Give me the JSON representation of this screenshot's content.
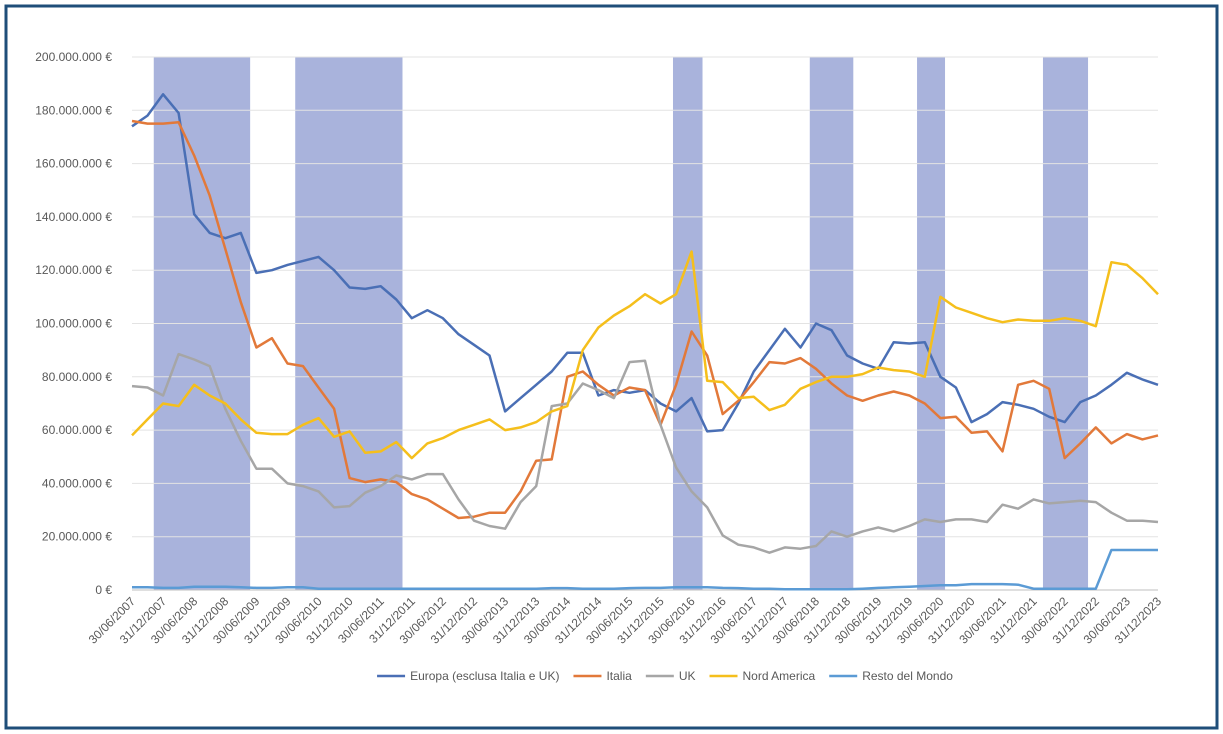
{
  "chart_data": {
    "type": "line",
    "ylim": [
      0,
      200000000
    ],
    "yticks": [
      {
        "value": 0,
        "label": "0 €"
      },
      {
        "value": 20000000,
        "label": "20.000.000 €"
      },
      {
        "value": 40000000,
        "label": "40.000.000 €"
      },
      {
        "value": 60000000,
        "label": "60.000.000 €"
      },
      {
        "value": 80000000,
        "label": "80.000.000 €"
      },
      {
        "value": 100000000,
        "label": "100.000.000 €"
      },
      {
        "value": 120000000,
        "label": "120.000.000 €"
      },
      {
        "value": 140000000,
        "label": "140.000.000 €"
      },
      {
        "value": 160000000,
        "label": "160.000.000 €"
      },
      {
        "value": 180000000,
        "label": "180.000.000 €"
      },
      {
        "value": 200000000,
        "label": "200.000.000 €"
      }
    ],
    "grid": true,
    "legend": "bottom",
    "shaded_periods": [
      [
        1.4,
        7.6
      ],
      [
        10.5,
        17.4
      ],
      [
        34.8,
        36.7
      ],
      [
        43.6,
        46.4
      ],
      [
        50.5,
        52.3
      ],
      [
        58.6,
        61.5
      ]
    ],
    "shaded_color": "#a9b3dc",
    "categories": [
      "30/06/2007",
      null,
      "31/12/2007",
      null,
      "30/06/2008",
      null,
      "31/12/2008",
      null,
      "30/06/2009",
      null,
      "31/12/2009",
      null,
      "30/06/2010",
      null,
      "31/12/2010",
      null,
      "30/06/2011",
      null,
      "31/12/2011",
      null,
      "30/06/2012",
      null,
      "31/12/2012",
      null,
      "30/06/2013",
      null,
      "31/12/2013",
      null,
      "30/06/2014",
      null,
      "31/12/2014",
      null,
      "30/06/2015",
      null,
      "31/12/2015",
      null,
      "30/06/2016",
      null,
      "31/12/2016",
      null,
      "30/06/2017",
      null,
      "31/12/2017",
      null,
      "30/06/2018",
      null,
      "31/12/2018",
      null,
      "30/06/2019",
      null,
      "31/12/2019",
      null,
      "30/06/2020",
      null,
      "31/12/2020",
      null,
      "30/06/2021",
      null,
      "31/12/2021",
      null,
      "30/06/2022",
      null,
      "31/12/2022",
      null,
      "30/06/2023",
      null,
      "31/12/2023"
    ],
    "series": [
      {
        "name": "Europa (esclusa Italia e UK)",
        "color": "#4a6fb5",
        "values": [
          174000000,
          178000000,
          186000000,
          179000000,
          141000000,
          134000000,
          132000000,
          134000000,
          119000000,
          120000000,
          122000000,
          123500000,
          125000000,
          120000000,
          113500000,
          113000000,
          114000000,
          109000000,
          102000000,
          105000000,
          102000000,
          96000000,
          92000000,
          88000000,
          67000000,
          72000000,
          77000000,
          82000000,
          89000000,
          89000000,
          73000000,
          75000000,
          74000000,
          75000000,
          70000000,
          67000000,
          72000000,
          59500000,
          60000000,
          70000000,
          82000000,
          90000000,
          98000000,
          91000000,
          100000000,
          97500000,
          88000000,
          85000000,
          83000000,
          93000000,
          92500000,
          93000000,
          80000000,
          76000000,
          63000000,
          66000000,
          70500000,
          69500000,
          68000000,
          65000000,
          63000000,
          70500000,
          73000000,
          77000000,
          81500000,
          79000000,
          77000000
        ]
      },
      {
        "name": "Italia",
        "color": "#e2793a",
        "values": [
          176000000,
          175000000,
          175000000,
          175500000,
          163000000,
          148000000,
          128000000,
          108000000,
          91000000,
          94500000,
          85000000,
          84000000,
          76000000,
          68000000,
          42000000,
          40500000,
          41500000,
          40500000,
          36000000,
          34000000,
          30500000,
          27000000,
          27500000,
          29000000,
          29000000,
          37000000,
          48500000,
          49000000,
          80000000,
          82000000,
          77000000,
          73000000,
          76000000,
          75000000,
          62000000,
          77000000,
          97000000,
          88000000,
          66000000,
          71000000,
          78000000,
          85500000,
          85000000,
          87000000,
          83000000,
          77500000,
          73000000,
          71000000,
          73000000,
          74500000,
          73000000,
          70000000,
          64500000,
          65000000,
          59000000,
          59500000,
          52000000,
          77000000,
          78500000,
          75500000,
          49500000,
          55000000,
          61000000,
          55000000,
          58500000,
          56500000,
          58000000
        ]
      },
      {
        "name": "UK",
        "color": "#a6a6a6",
        "values": [
          76500000,
          76000000,
          73000000,
          88500000,
          86500000,
          84000000,
          68000000,
          56000000,
          45500000,
          45500000,
          40000000,
          39000000,
          37000000,
          31000000,
          31500000,
          36500000,
          39000000,
          43000000,
          41500000,
          43500000,
          43500000,
          34000000,
          26000000,
          24000000,
          23000000,
          33000000,
          39000000,
          69000000,
          70000000,
          77500000,
          75000000,
          72000000,
          85500000,
          86000000,
          62000000,
          46000000,
          37000000,
          31000000,
          20500000,
          17000000,
          16000000,
          14000000,
          16000000,
          15500000,
          16500000,
          22000000,
          20000000,
          22000000,
          23500000,
          22000000,
          24000000,
          26500000,
          25500000,
          26500000,
          26500000,
          25500000,
          32000000,
          30500000,
          34000000,
          32500000,
          33000000,
          33500000,
          33000000,
          29000000,
          26000000,
          26000000,
          25500000
        ]
      },
      {
        "name": "Nord America",
        "color": "#f5bf1c",
        "values": [
          58000000,
          64000000,
          70000000,
          69000000,
          77000000,
          73000000,
          70000000,
          64000000,
          59000000,
          58500000,
          58500000,
          62000000,
          64500000,
          57500000,
          59500000,
          51500000,
          52000000,
          55500000,
          49500000,
          55000000,
          57000000,
          60000000,
          62000000,
          64000000,
          60000000,
          61000000,
          63000000,
          67000000,
          69000000,
          90000000,
          98500000,
          103000000,
          106500000,
          111000000,
          107500000,
          111000000,
          127000000,
          78500000,
          78000000,
          72000000,
          72500000,
          67500000,
          69500000,
          75500000,
          78000000,
          80000000,
          80000000,
          81000000,
          83500000,
          82500000,
          82000000,
          80000000,
          110000000,
          106000000,
          104000000,
          102000000,
          100500000,
          101500000,
          101000000,
          101000000,
          102000000,
          101000000,
          99000000,
          123000000,
          122000000,
          117000000,
          111000000
        ]
      },
      {
        "name": "Resto del Mondo",
        "color": "#5b9bd5",
        "values": [
          1000000,
          1000000,
          800000,
          800000,
          1200000,
          1200000,
          1200000,
          1000000,
          800000,
          800000,
          1000000,
          1000000,
          500000,
          500000,
          500000,
          500000,
          500000,
          500000,
          500000,
          500000,
          500000,
          500000,
          500000,
          500000,
          500000,
          500000,
          500000,
          700000,
          700000,
          500000,
          500000,
          500000,
          700000,
          800000,
          800000,
          1000000,
          1000000,
          1000000,
          800000,
          700000,
          500000,
          500000,
          300000,
          300000,
          300000,
          300000,
          300000,
          500000,
          800000,
          1000000,
          1200000,
          1500000,
          1800000,
          1800000,
          2200000,
          2200000,
          2200000,
          2000000,
          500000,
          500000,
          500000,
          500000,
          500000,
          15000000,
          15000000,
          15000000,
          15000000
        ]
      }
    ]
  }
}
